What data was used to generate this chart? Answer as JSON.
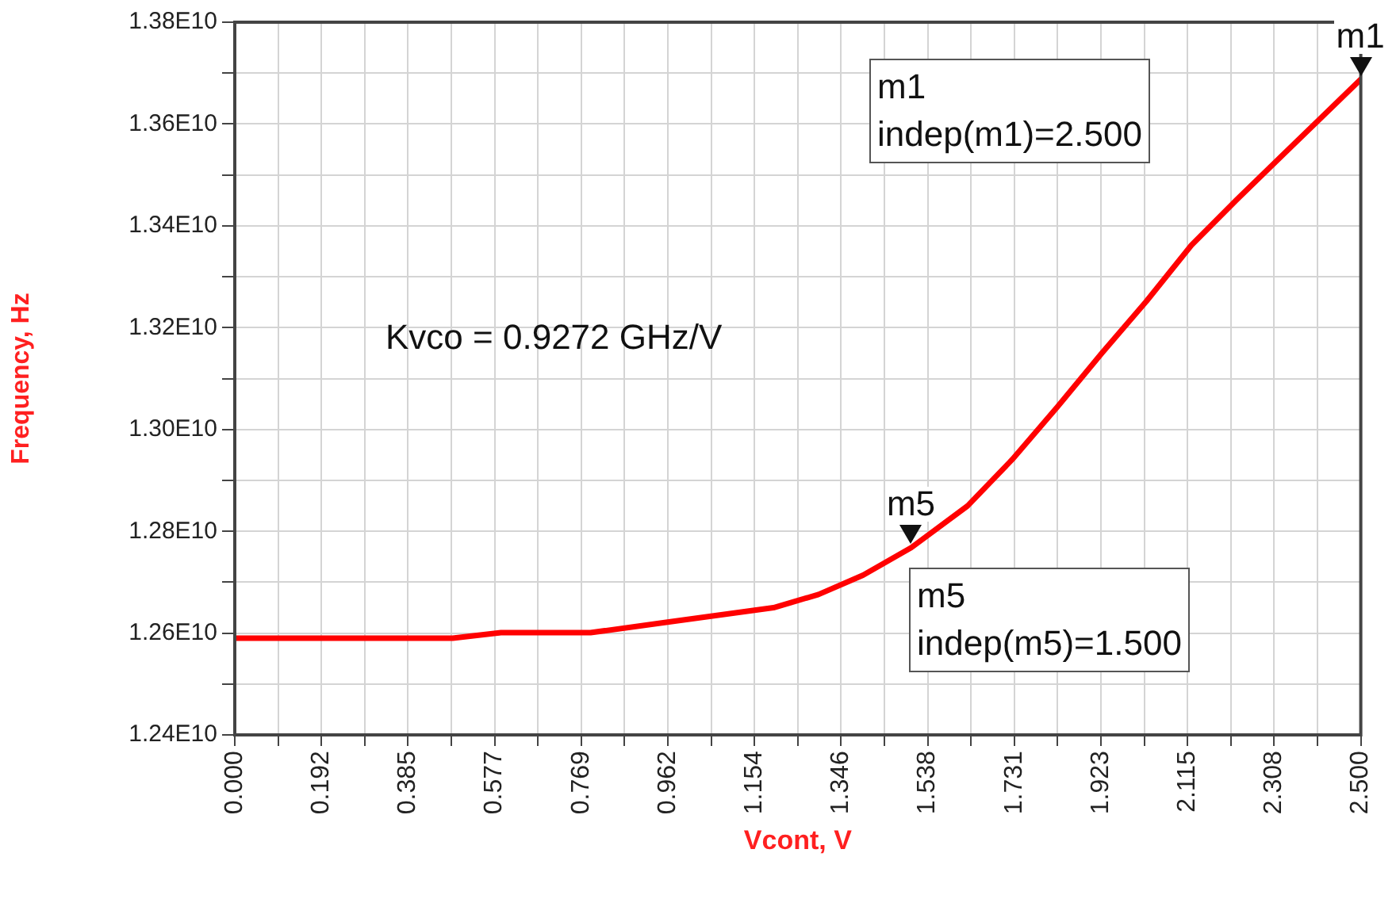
{
  "chart_data": {
    "type": "line",
    "xlabel": "Vcont, V",
    "ylabel": "Frequency, Hz",
    "x": [
      0,
      0.484,
      0.591,
      0.79,
      0.964,
      1.196,
      1.296,
      1.395,
      1.502,
      1.627,
      1.726,
      1.826,
      1.925,
      2.024,
      2.124,
      2.223,
      2.323,
      2.5
    ],
    "series": [
      {
        "color": "#ff0000",
        "values": [
          12590000000,
          12590000000,
          12601000000,
          12601000000,
          12622000000,
          12650000000,
          12676000000,
          12714000000,
          12768000000,
          12850000000,
          12941000000,
          13044000000,
          13150000000,
          13252000000,
          13362000000,
          13450000000,
          13536000000,
          13688000000
        ]
      }
    ],
    "xlim": [
      0,
      2.5
    ],
    "xticks": [
      {
        "value": 0,
        "label": "0.000"
      },
      {
        "value": 0.09615,
        "label": null
      },
      {
        "value": 0.19231,
        "label": "0.192"
      },
      {
        "value": 0.28846,
        "label": null
      },
      {
        "value": 0.38462,
        "label": "0.385"
      },
      {
        "value": 0.48077,
        "label": null
      },
      {
        "value": 0.57692,
        "label": "0.577"
      },
      {
        "value": 0.67308,
        "label": null
      },
      {
        "value": 0.76923,
        "label": "0.769"
      },
      {
        "value": 0.86538,
        "label": null
      },
      {
        "value": 0.96154,
        "label": "0.962"
      },
      {
        "value": 1.05769,
        "label": null
      },
      {
        "value": 1.15385,
        "label": "1.154"
      },
      {
        "value": 1.25,
        "label": null
      },
      {
        "value": 1.34615,
        "label": "1.346"
      },
      {
        "value": 1.44231,
        "label": null
      },
      {
        "value": 1.53846,
        "label": "1.538"
      },
      {
        "value": 1.63462,
        "label": null
      },
      {
        "value": 1.73077,
        "label": "1.731"
      },
      {
        "value": 1.82692,
        "label": null
      },
      {
        "value": 1.92308,
        "label": "1.923"
      },
      {
        "value": 2.01923,
        "label": null
      },
      {
        "value": 2.11538,
        "label": "2.115"
      },
      {
        "value": 2.21154,
        "label": null
      },
      {
        "value": 2.30769,
        "label": "2.308"
      },
      {
        "value": 2.40385,
        "label": null
      },
      {
        "value": 2.5,
        "label": "2.500"
      }
    ],
    "ylim": [
      12400000000,
      13800000000
    ],
    "yticks": [
      {
        "value": 12400000000,
        "label": "1.24E10"
      },
      {
        "value": 12500000000,
        "label": null
      },
      {
        "value": 12600000000,
        "label": "1.26E10"
      },
      {
        "value": 12700000000,
        "label": null
      },
      {
        "value": 12800000000,
        "label": "1.28E10"
      },
      {
        "value": 12900000000,
        "label": null
      },
      {
        "value": 13000000000,
        "label": "1.30E10"
      },
      {
        "value": 13100000000,
        "label": null
      },
      {
        "value": 13200000000,
        "label": "1.32E10"
      },
      {
        "value": 13300000000,
        "label": null
      },
      {
        "value": 13400000000,
        "label": "1.34E10"
      },
      {
        "value": 13500000000,
        "label": null
      },
      {
        "value": 13600000000,
        "label": "1.36E10"
      },
      {
        "value": 13700000000,
        "label": null
      },
      {
        "value": 13800000000,
        "label": "1.38E10"
      }
    ],
    "grid": true,
    "legend": false,
    "marker": "none",
    "line_style": "solid",
    "annotations": [
      {
        "text": "m1",
        "x": 2.5,
        "y": 13688000000
      },
      {
        "text": "m5",
        "x": 1.502,
        "y": 12768000000
      },
      "m1\nindep(m1)=2.500",
      "m5\nindep(m5)=1.500",
      "Kvco = 0.9272 GHz/V"
    ]
  }
}
